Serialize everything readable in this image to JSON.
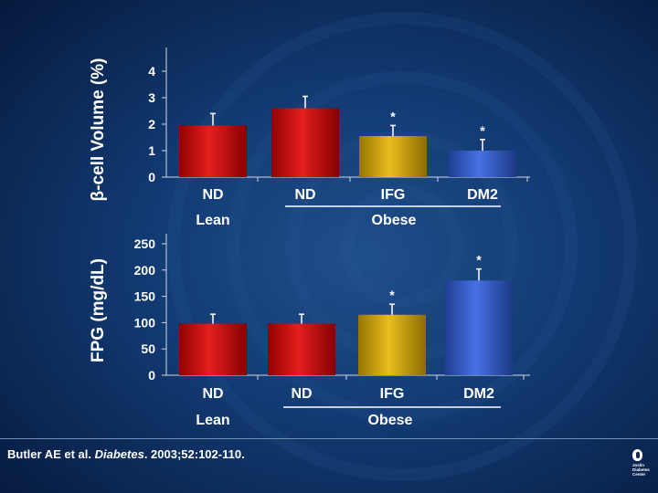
{
  "chart_data": [
    {
      "type": "bar",
      "ylabel": "β-cell Volume (%)",
      "ylim": [
        0,
        4
      ],
      "yticks": [
        "0",
        "1",
        "2",
        "3",
        "4"
      ],
      "categories": [
        "ND",
        "ND",
        "IFG",
        "DM2"
      ],
      "values": [
        1.95,
        2.6,
        1.55,
        1.0
      ],
      "errors": [
        0.45,
        0.45,
        0.4,
        0.42
      ],
      "significance": [
        "",
        "",
        "*",
        "*"
      ],
      "colors": [
        "#e00000",
        "#e00000",
        "#e7b400",
        "#2f5fe0"
      ],
      "groups": [
        {
          "label": "Lean",
          "span": [
            0,
            0
          ]
        },
        {
          "label": "Obese",
          "span": [
            1,
            3
          ]
        }
      ]
    },
    {
      "type": "bar",
      "ylabel": "FPG (mg/dL)",
      "ylim": [
        0,
        250
      ],
      "yticks": [
        "0",
        "50",
        "100",
        "150",
        "200",
        "250"
      ],
      "categories": [
        "ND",
        "ND",
        "IFG",
        "DM2"
      ],
      "values": [
        98,
        98,
        115,
        180
      ],
      "errors": [
        18,
        18,
        20,
        22
      ],
      "significance": [
        "",
        "",
        "*",
        "*"
      ],
      "colors": [
        "#e00000",
        "#e00000",
        "#e7b400",
        "#2f5fe0"
      ],
      "groups": [
        {
          "label": "Lean",
          "span": [
            0,
            0
          ]
        },
        {
          "label": "Obese",
          "span": [
            1,
            3
          ]
        }
      ]
    }
  ],
  "citation": {
    "authors": "Butler AE et al.",
    "journal": "Diabetes",
    "details": ". 2003;52:102-110."
  },
  "logo": {
    "lines": [
      "Joslin",
      "Diabetes",
      "Center"
    ]
  }
}
